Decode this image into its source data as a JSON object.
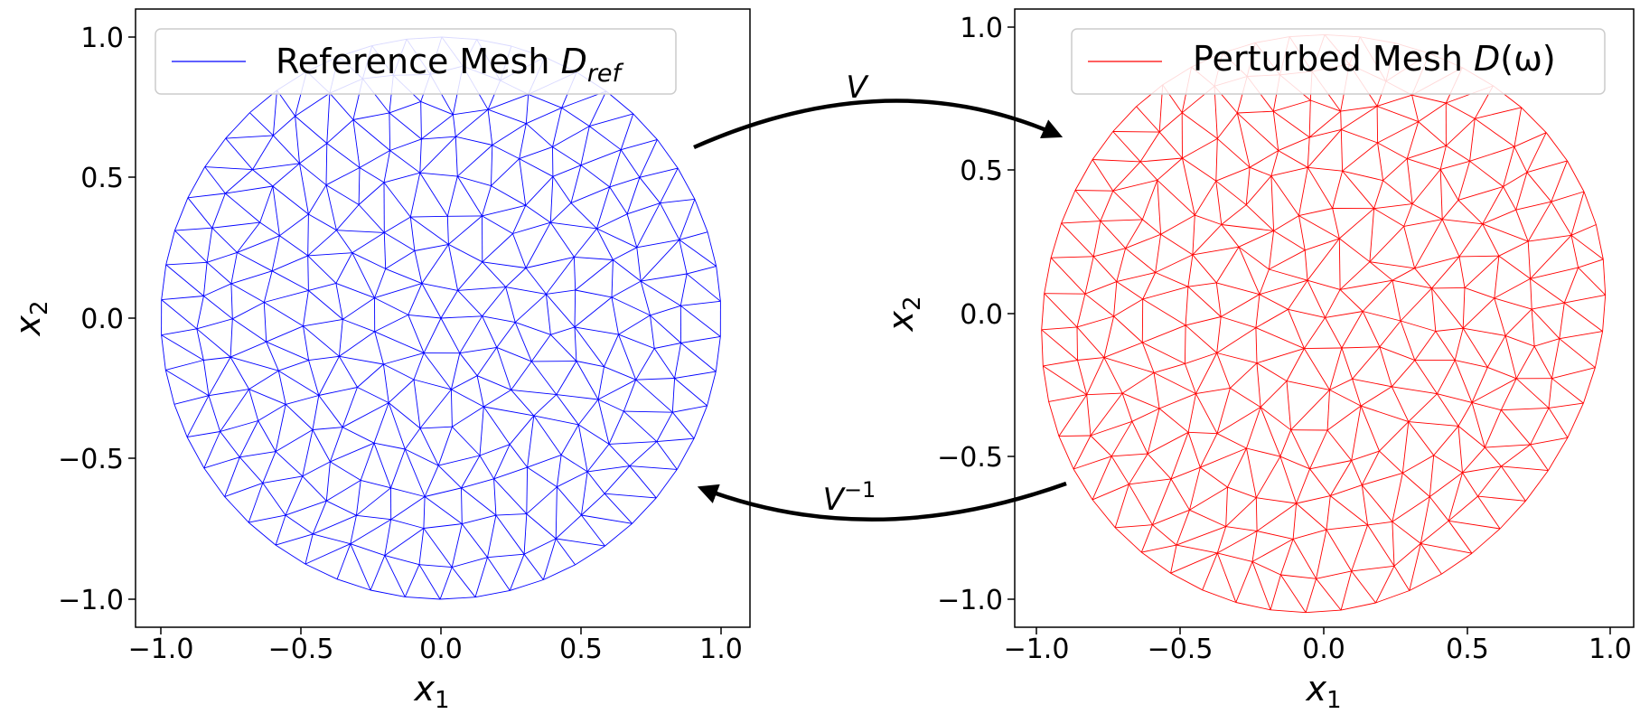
{
  "colors": {
    "reference": "#0000ff",
    "perturbed": "#ff0000",
    "axes": "#000000"
  },
  "panels": [
    {
      "id": "reference",
      "legend_text": "Reference Mesh ",
      "legend_symbol": "D",
      "legend_sub": "ref",
      "legend_suffix": "",
      "xlabel_main": "x",
      "xlabel_sub": "1",
      "ylabel_main": "x",
      "ylabel_sub": "2",
      "xticks": [
        "−1.0",
        "−0.5",
        "0.0",
        "0.5",
        "1.0"
      ],
      "yticks": [
        "1.0",
        "0.5",
        "0.0",
        "−0.5",
        "−1.0"
      ],
      "xlim": [
        -1.1,
        1.1
      ],
      "ylim": [
        -1.1,
        1.1
      ]
    },
    {
      "id": "perturbed",
      "legend_text": "Perturbed Mesh ",
      "legend_symbol": "D",
      "legend_sub": "",
      "legend_suffix": "(ω)",
      "xlabel_main": "x",
      "xlabel_sub": "1",
      "ylabel_main": "x",
      "ylabel_sub": "2",
      "xticks": [
        "−1.0",
        "−0.5",
        "0.0",
        "0.5",
        "1.0"
      ],
      "yticks": [
        "1.0",
        "0.5",
        "0.0",
        "−0.5",
        "−1.0"
      ],
      "xlim": [
        -1.08,
        1.06
      ],
      "ylim": [
        -1.1,
        1.05
      ]
    }
  ],
  "arrows": {
    "forward_label": "V",
    "inverse_label_main": "V",
    "inverse_label_sup": "−1"
  }
}
